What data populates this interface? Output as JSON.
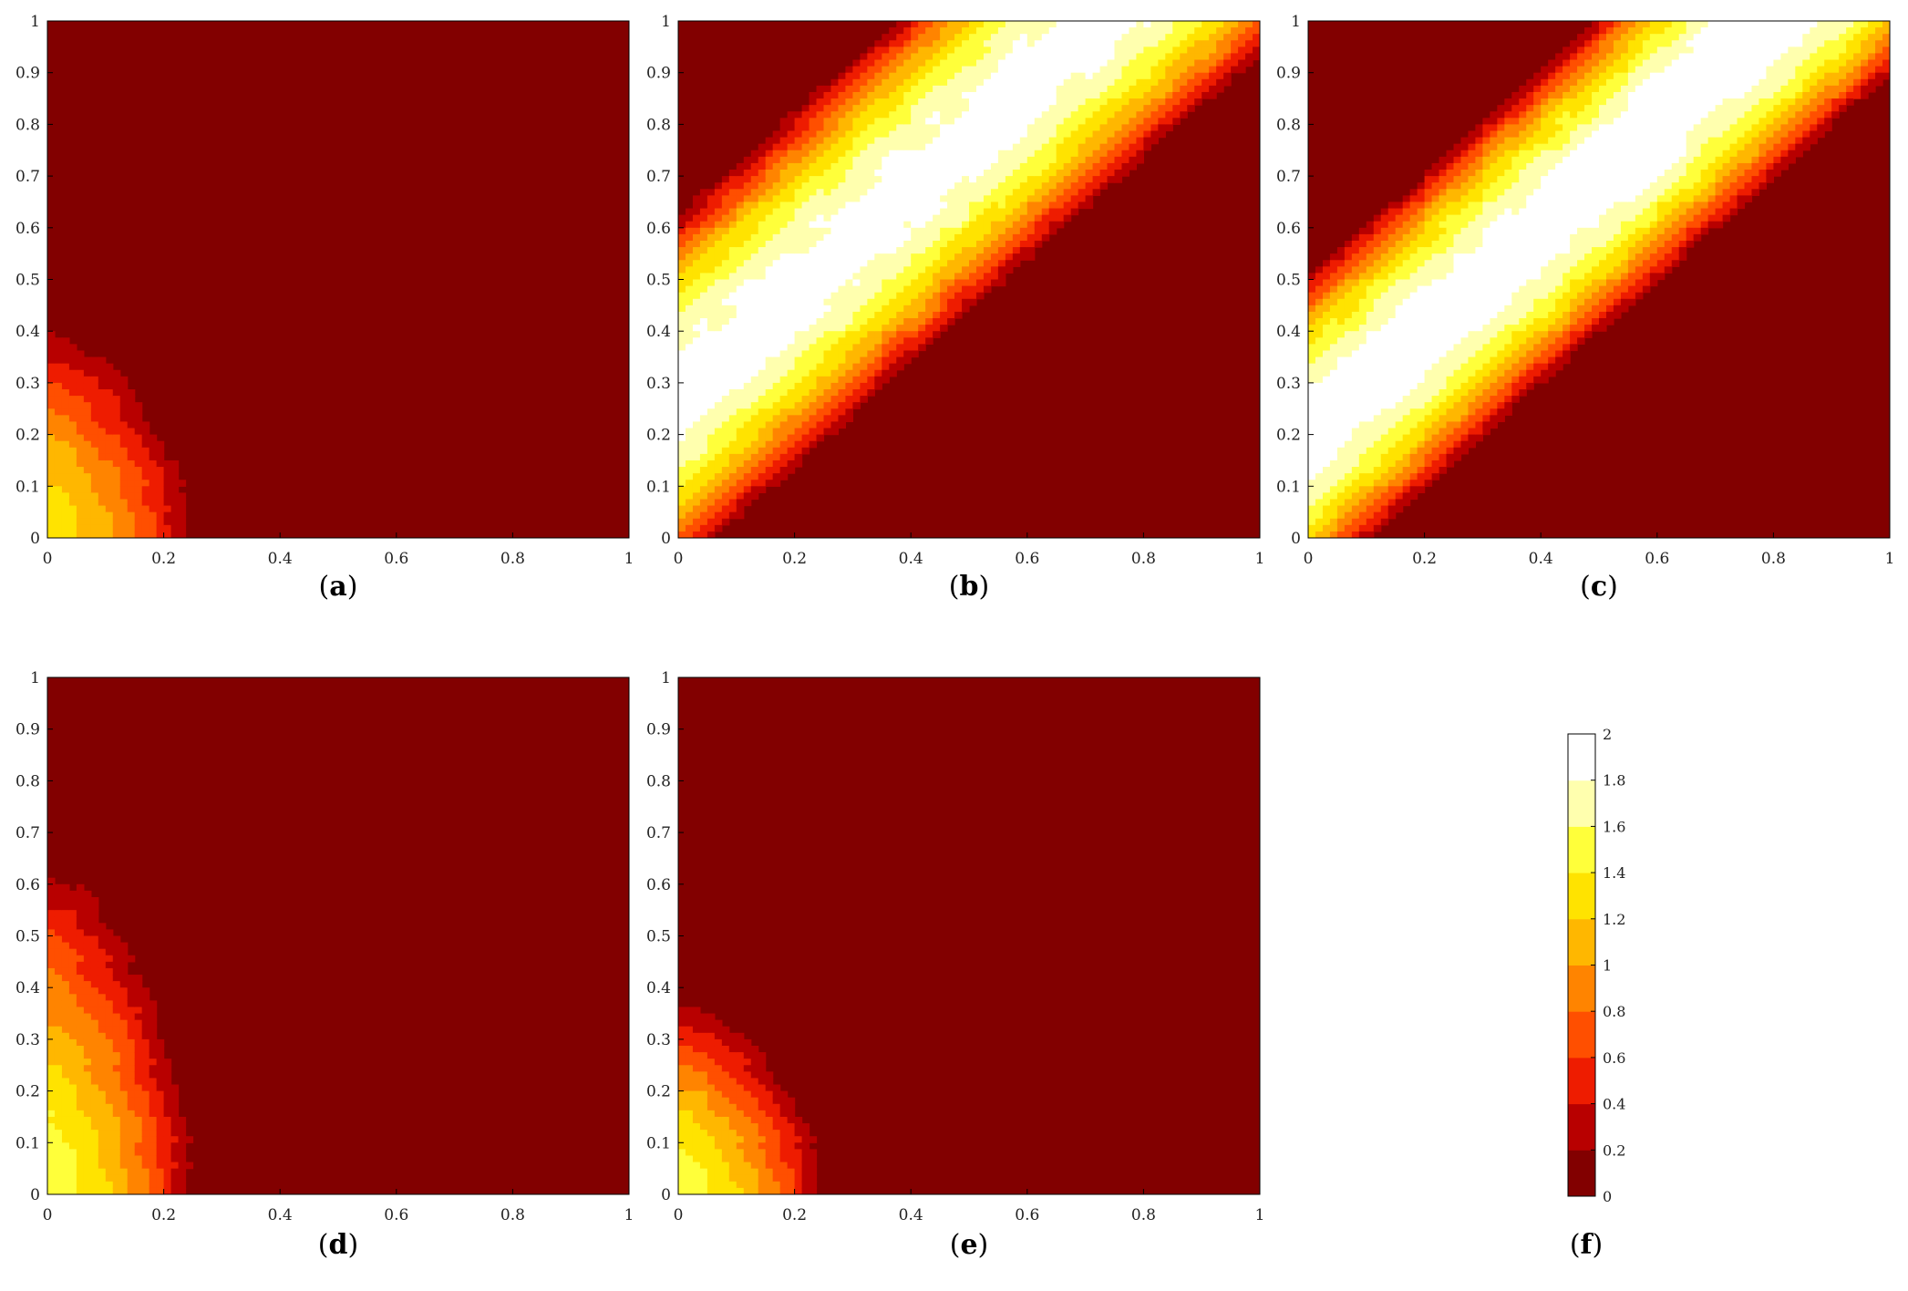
{
  "colors": {
    "dark_red": "#820000",
    "red_1": "#b80000",
    "red_2": "#ee1c00",
    "red_3": "#ff4f00",
    "orange_1": "#ff8400",
    "orange_2": "#ffb700",
    "yellow_1": "#ffe300",
    "yellow_2": "#ffff3a",
    "light_yellow": "#ffffae",
    "white": "#ffffff"
  },
  "chart_data": [
    {
      "type": "contour",
      "panel_label": "a",
      "x_ticks": [
        "0",
        "0.2",
        "0.4",
        "0.6",
        "0.8",
        "1"
      ],
      "y_ticks": [
        "0",
        "0.1",
        "0.2",
        "0.3",
        "0.4",
        "0.5",
        "0.6",
        "0.7",
        "0.8",
        "0.9",
        "1"
      ],
      "xlim": [
        0,
        1
      ],
      "ylim": [
        0,
        1
      ],
      "clim": [
        0,
        2
      ],
      "pattern": "corner-lobe",
      "lobe": {
        "x_extent": 0.27,
        "y_extent": 0.44,
        "peak": 1.3
      }
    },
    {
      "type": "contour",
      "panel_label": "b",
      "x_ticks": [
        "0",
        "0.2",
        "0.4",
        "0.6",
        "0.8",
        "1"
      ],
      "y_ticks": [
        "0",
        "0.1",
        "0.2",
        "0.3",
        "0.4",
        "0.5",
        "0.6",
        "0.7",
        "0.8",
        "0.9",
        "1"
      ],
      "xlim": [
        0,
        1
      ],
      "ylim": [
        0,
        1
      ],
      "clim": [
        0,
        2
      ],
      "pattern": "diagonal-band",
      "band": {
        "center_offset": 0.28,
        "half_width": 0.36,
        "peak": 1.9
      }
    },
    {
      "type": "contour",
      "panel_label": "c",
      "x_ticks": [
        "0",
        "0.2",
        "0.4",
        "0.6",
        "0.8",
        "1"
      ],
      "y_ticks": [
        "0",
        "0.1",
        "0.2",
        "0.3",
        "0.4",
        "0.5",
        "0.6",
        "0.7",
        "0.8",
        "0.9",
        "1"
      ],
      "xlim": [
        0,
        1
      ],
      "ylim": [
        0,
        1
      ],
      "clim": [
        0,
        2
      ],
      "pattern": "diagonal-band",
      "band": {
        "center_offset": 0.2,
        "half_width": 0.32,
        "peak": 1.95
      }
    },
    {
      "type": "contour",
      "panel_label": "d",
      "x_ticks": [
        "0",
        "0.2",
        "0.4",
        "0.6",
        "0.8",
        "1"
      ],
      "y_ticks": [
        "0",
        "0.1",
        "0.2",
        "0.3",
        "0.4",
        "0.5",
        "0.6",
        "0.7",
        "0.8",
        "0.9",
        "1"
      ],
      "xlim": [
        0,
        1
      ],
      "ylim": [
        0,
        1
      ],
      "clim": [
        0,
        2
      ],
      "pattern": "corner-lobe",
      "lobe": {
        "x_extent": 0.27,
        "y_extent": 0.68,
        "peak": 1.5
      }
    },
    {
      "type": "contour",
      "panel_label": "e",
      "x_ticks": [
        "0",
        "0.2",
        "0.4",
        "0.6",
        "0.8",
        "1"
      ],
      "y_ticks": [
        "0",
        "0.1",
        "0.2",
        "0.3",
        "0.4",
        "0.5",
        "0.6",
        "0.7",
        "0.8",
        "0.9",
        "1"
      ],
      "xlim": [
        0,
        1
      ],
      "ylim": [
        0,
        1
      ],
      "clim": [
        0,
        2
      ],
      "pattern": "corner-lobe",
      "lobe": {
        "x_extent": 0.27,
        "y_extent": 0.4,
        "peak": 1.5
      }
    }
  ],
  "colorbar": {
    "panel_label": "f",
    "ticks": [
      "0",
      "0.2",
      "0.4",
      "0.6",
      "0.8",
      "1",
      "1.2",
      "1.4",
      "1.6",
      "1.8",
      "2"
    ],
    "range": [
      0,
      2
    ]
  }
}
